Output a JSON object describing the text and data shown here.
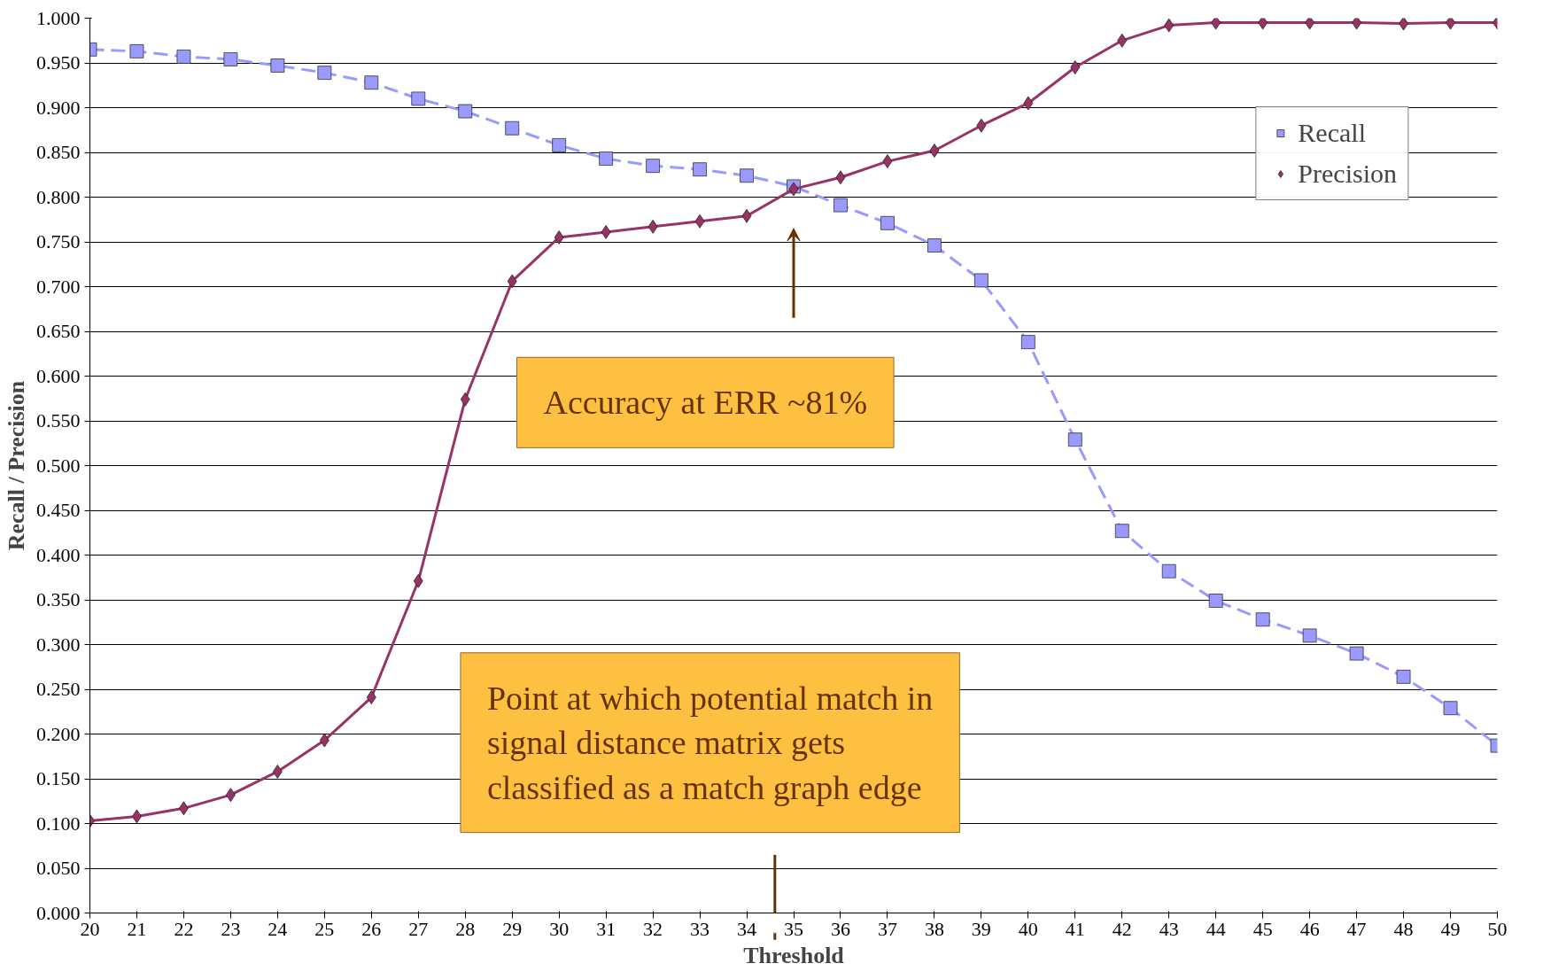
{
  "chart_data": {
    "type": "line",
    "xlabel": "Threshold",
    "ylabel": "Recall / Precision",
    "x": [
      20,
      21,
      22,
      23,
      24,
      25,
      26,
      27,
      28,
      29,
      30,
      31,
      32,
      33,
      34,
      35,
      36,
      37,
      38,
      39,
      40,
      41,
      42,
      43,
      44,
      45,
      46,
      47,
      48,
      49,
      50
    ],
    "series": [
      {
        "name": "Recall",
        "color": "#9999ff",
        "marker": "square",
        "line_style": "dashed",
        "values": [
          0.965,
          0.963,
          0.957,
          0.954,
          0.947,
          0.939,
          0.928,
          0.91,
          0.896,
          0.877,
          0.858,
          0.843,
          0.835,
          0.831,
          0.824,
          0.812,
          0.791,
          0.771,
          0.746,
          0.707,
          0.638,
          0.529,
          0.427,
          0.382,
          0.349,
          0.328,
          0.31,
          0.29,
          0.264,
          0.229,
          0.187
        ]
      },
      {
        "name": "Precision",
        "color": "#993366",
        "marker": "diamond",
        "line_style": "solid",
        "values": [
          0.103,
          0.108,
          0.117,
          0.132,
          0.158,
          0.193,
          0.241,
          0.371,
          0.574,
          0.706,
          0.755,
          0.761,
          0.767,
          0.773,
          0.779,
          0.809,
          0.822,
          0.84,
          0.852,
          0.88,
          0.905,
          0.945,
          0.975,
          0.992,
          0.995,
          0.995,
          0.995,
          0.995,
          0.994,
          0.995,
          0.995
        ]
      }
    ],
    "xlim": [
      20,
      50
    ],
    "xticks": [
      20,
      21,
      22,
      23,
      24,
      25,
      26,
      27,
      28,
      29,
      30,
      31,
      32,
      33,
      34,
      35,
      36,
      37,
      38,
      39,
      40,
      41,
      42,
      43,
      44,
      45,
      46,
      47,
      48,
      49,
      50
    ],
    "ylim": [
      0,
      1
    ],
    "yticks": [
      {
        "value": 0,
        "label": "0.000"
      },
      {
        "value": 0.05,
        "label": "0.050"
      },
      {
        "value": 0.1,
        "label": "0.100"
      },
      {
        "value": 0.15,
        "label": "0.150"
      },
      {
        "value": 0.2,
        "label": "0.200"
      },
      {
        "value": 0.25,
        "label": "0.250"
      },
      {
        "value": 0.3,
        "label": "0.300"
      },
      {
        "value": 0.35,
        "label": "0.350"
      },
      {
        "value": 0.4,
        "label": "0.400"
      },
      {
        "value": 0.45,
        "label": "0.450"
      },
      {
        "value": 0.5,
        "label": "0.500"
      },
      {
        "value": 0.55,
        "label": "0.550"
      },
      {
        "value": 0.6,
        "label": "0.600"
      },
      {
        "value": 0.65,
        "label": "0.650"
      },
      {
        "value": 0.7,
        "label": "0.700"
      },
      {
        "value": 0.75,
        "label": "0.750"
      },
      {
        "value": 0.8,
        "label": "0.800"
      },
      {
        "value": 0.85,
        "label": "0.850"
      },
      {
        "value": 0.9,
        "label": "0.900"
      },
      {
        "value": 0.95,
        "label": "0.950"
      },
      {
        "value": 1,
        "label": "1.000"
      }
    ],
    "grid": "y",
    "legend": "top right",
    "annotations": [
      "Accuracy at ERR ~81%",
      "Point at which potential match in signal distance matrix gets classified as a match graph edge"
    ]
  }
}
